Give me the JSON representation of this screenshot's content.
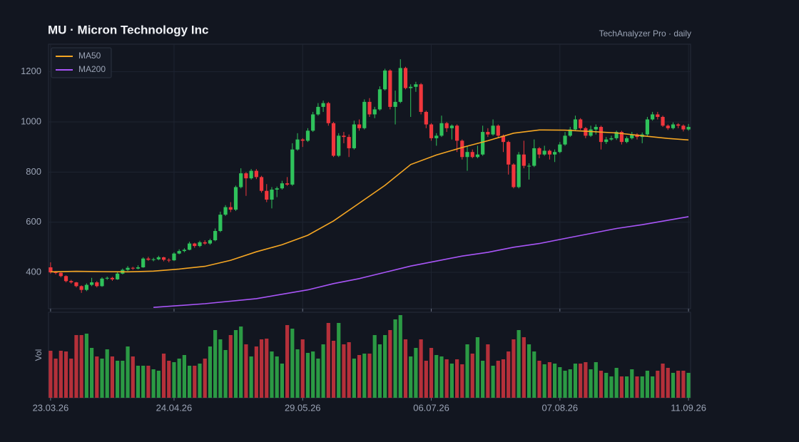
{
  "header": {
    "title": "MU  ·  Micron Technology Inc",
    "source": "TechAnalyzer Pro · daily"
  },
  "chart_data": [
    {
      "type": "candlestick",
      "xlim": [
        -0.4,
        124.4
      ],
      "xticks": [
        {
          "value": 0,
          "label": "23.03.26"
        },
        {
          "value": 24,
          "label": "24.04.26"
        },
        {
          "value": 49,
          "label": "29.05.26"
        },
        {
          "value": 74,
          "label": "06.07.26"
        },
        {
          "value": 99,
          "label": "07.08.26"
        },
        {
          "value": 124,
          "label": "11.09.26"
        }
      ],
      "ylim": [
        255,
        1310
      ],
      "yticks": [
        400,
        600,
        800,
        1000,
        1200
      ],
      "grid": true,
      "up_color": "#2fc25b",
      "down_color": "#f0363c",
      "open": [
        420,
        400,
        398,
        385,
        365,
        360,
        345,
        330,
        350,
        360,
        345,
        375,
        378,
        372,
        395,
        410,
        418,
        415,
        420,
        455,
        450,
        452,
        460,
        450,
        448,
        475,
        485,
        490,
        515,
        505,
        520,
        515,
        528,
        565,
        630,
        660,
        650,
        740,
        795,
        775,
        805,
        780,
        725,
        690,
        730,
        735,
        755,
        750,
        890,
        930,
        925,
        965,
        1030,
        1060,
        1075,
        995,
        865,
        945,
        940,
        895,
        990,
        975,
        1080,
        1030,
        1050,
        1130,
        1205,
        1060,
        1080,
        1215,
        1135,
        1140,
        1150,
        1040,
        990,
        935,
        945,
        995,
        975,
        985,
        925,
        860,
        880,
        860,
        870,
        960,
        950,
        985,
        945,
        920,
        830,
        740,
        870,
        825,
        825,
        895,
        870,
        885,
        870,
        880,
        910,
        945,
        970,
        1010,
        975,
        945,
        970,
        980,
        920,
        930,
        935,
        960,
        920,
        935,
        950,
        940,
        950,
        1010,
        1030,
        1020,
        985,
        975,
        990,
        985,
        970
      ],
      "high": [
        440,
        405,
        400,
        388,
        370,
        362,
        348,
        356,
        378,
        365,
        380,
        383,
        382,
        400,
        415,
        425,
        422,
        428,
        460,
        462,
        458,
        466,
        462,
        456,
        480,
        492,
        496,
        522,
        518,
        526,
        528,
        534,
        575,
        642,
        668,
        680,
        746,
        815,
        800,
        812,
        812,
        785,
        752,
        740,
        742,
        765,
        780,
        915,
        955,
        935,
        975,
        1040,
        1075,
        1085,
        1080,
        1000,
        955,
        960,
        950,
        1005,
        1010,
        1090,
        1095,
        1060,
        1142,
        1212,
        1210,
        1125,
        1250,
        1220,
        1150,
        1160,
        1155,
        1045,
        995,
        955,
        1025,
        1000,
        990,
        990,
        930,
        905,
        890,
        905,
        985,
        975,
        1010,
        990,
        950,
        925,
        835,
        880,
        925,
        835,
        930,
        900,
        905,
        890,
        890,
        920,
        960,
        980,
        1025,
        1015,
        980,
        985,
        990,
        985,
        940,
        945,
        965,
        965,
        942,
        960,
        955,
        958,
        1020,
        1040,
        1040,
        1025,
        990,
        998,
        995,
        990,
        992
      ],
      "low": [
        395,
        392,
        380,
        360,
        355,
        340,
        318,
        325,
        345,
        340,
        342,
        370,
        366,
        370,
        392,
        405,
        410,
        412,
        418,
        446,
        444,
        448,
        444,
        440,
        445,
        472,
        480,
        488,
        498,
        500,
        510,
        510,
        524,
        560,
        625,
        640,
        645,
        735,
        705,
        770,
        772,
        718,
        680,
        655,
        700,
        730,
        745,
        745,
        885,
        900,
        920,
        960,
        1025,
        1040,
        985,
        860,
        860,
        915,
        860,
        890,
        965,
        970,
        1020,
        1015,
        1045,
        1125,
        1050,
        990,
        1075,
        1130,
        1020,
        1120,
        1030,
        975,
        925,
        905,
        940,
        960,
        930,
        880,
        850,
        805,
        855,
        855,
        865,
        940,
        945,
        935,
        880,
        790,
        735,
        735,
        815,
        770,
        820,
        855,
        865,
        850,
        840,
        875,
        905,
        940,
        965,
        968,
        935,
        940,
        950,
        890,
        912,
        925,
        928,
        910,
        915,
        930,
        930,
        915,
        945,
        1005,
        1010,
        980,
        968,
        970,
        975,
        962,
        965
      ],
      "close": [
        400,
        398,
        385,
        365,
        360,
        345,
        330,
        350,
        360,
        345,
        375,
        378,
        372,
        395,
        410,
        418,
        415,
        420,
        455,
        450,
        452,
        460,
        450,
        448,
        475,
        485,
        490,
        515,
        505,
        520,
        515,
        528,
        565,
        630,
        660,
        650,
        740,
        795,
        775,
        805,
        780,
        725,
        690,
        730,
        735,
        755,
        750,
        890,
        930,
        925,
        965,
        1030,
        1060,
        1075,
        995,
        865,
        945,
        940,
        895,
        990,
        975,
        1080,
        1030,
        1050,
        1130,
        1205,
        1060,
        1080,
        1215,
        1135,
        1140,
        1150,
        1040,
        990,
        935,
        945,
        995,
        975,
        985,
        925,
        860,
        880,
        860,
        870,
        960,
        950,
        985,
        945,
        920,
        830,
        740,
        870,
        825,
        825,
        895,
        870,
        885,
        870,
        880,
        910,
        945,
        970,
        1010,
        975,
        945,
        970,
        980,
        920,
        930,
        935,
        960,
        920,
        935,
        950,
        940,
        950,
        1010,
        1030,
        1020,
        985,
        975,
        990,
        985,
        970,
        980
      ],
      "legend": "upper left",
      "lines": [
        {
          "name": "MA50",
          "color": "#f5a623",
          "x": [
            0,
            5,
            10,
            15,
            20,
            25,
            30,
            35,
            40,
            45,
            50,
            55,
            60,
            65,
            70,
            75,
            80,
            85,
            90,
            95,
            100,
            105,
            110,
            115,
            120,
            124
          ],
          "values": [
            402,
            404,
            403,
            402,
            405,
            413,
            424,
            448,
            482,
            510,
            548,
            605,
            676,
            747,
            830,
            868,
            898,
            925,
            955,
            968,
            967,
            962,
            956,
            945,
            934,
            928
          ]
        },
        {
          "name": "MA200",
          "color": "#a855f7",
          "x": [
            20,
            30,
            40,
            50,
            55,
            60,
            65,
            70,
            75,
            80,
            85,
            90,
            95,
            100,
            105,
            110,
            115,
            120,
            124
          ],
          "values": [
            260,
            275,
            295,
            330,
            355,
            375,
            400,
            425,
            445,
            465,
            480,
            500,
            515,
            535,
            555,
            575,
            590,
            608,
            622
          ]
        }
      ]
    },
    {
      "type": "bar",
      "y_label": "Vol",
      "ylim": [
        0,
        120
      ],
      "up_color": "#2b9a44",
      "down_color": "#b5303a",
      "values": [
        66,
        55,
        66,
        65,
        55,
        88,
        88,
        90,
        70,
        58,
        55,
        68,
        58,
        52,
        52,
        72,
        58,
        45,
        45,
        45,
        40,
        38,
        62,
        52,
        50,
        55,
        60,
        45,
        45,
        48,
        55,
        72,
        95,
        82,
        67,
        88,
        95,
        100,
        75,
        58,
        72,
        82,
        83,
        65,
        58,
        48,
        102,
        97,
        68,
        82,
        63,
        65,
        55,
        75,
        105,
        80,
        105,
        75,
        78,
        55,
        60,
        62,
        62,
        88,
        75,
        88,
        95,
        110,
        116,
        82,
        58,
        70,
        82,
        52,
        70,
        60,
        58,
        54,
        48,
        54,
        47,
        75,
        62,
        85,
        52,
        75,
        45,
        52,
        54,
        65,
        82,
        95,
        85,
        75,
        65,
        52,
        47,
        50,
        48,
        43,
        38,
        40,
        48,
        48,
        50,
        40,
        50,
        38,
        35,
        30,
        42,
        30,
        30,
        40,
        30,
        30,
        38,
        30,
        38,
        48,
        42,
        35,
        38,
        38,
        35
      ]
    }
  ]
}
